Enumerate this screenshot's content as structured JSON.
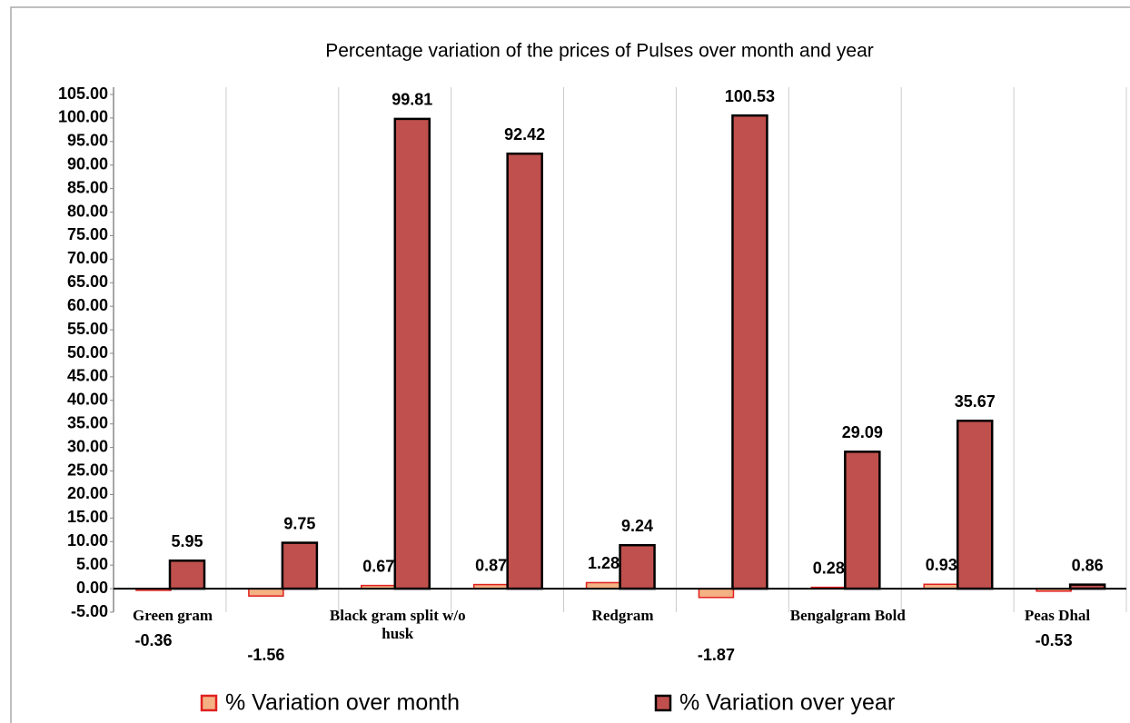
{
  "chart_data": {
    "type": "bar",
    "title": "Percentage variation of the prices of Pulses over month and year",
    "categories": [
      "Green gram",
      null,
      "Black gram split w/o husk",
      null,
      "Redgram",
      null,
      "Bengalgram Bold",
      null,
      "Peas Dhal"
    ],
    "series": [
      {
        "name": "% Variation over month",
        "color": "#f4b183",
        "values": [
          -0.36,
          -1.56,
          0.67,
          0.87,
          1.28,
          -1.87,
          0.28,
          0.93,
          -0.53
        ]
      },
      {
        "name": "% Variation over year",
        "color": "#c0504d",
        "values": [
          5.95,
          9.75,
          99.81,
          92.42,
          9.24,
          100.53,
          29.09,
          35.67,
          0.86
        ]
      }
    ],
    "ylim": [
      -5,
      105
    ],
    "yticks": [
      {
        "value": -5,
        "label": "-5.00"
      },
      {
        "value": 0,
        "label": "0.00"
      },
      {
        "value": 5,
        "label": "5.00"
      },
      {
        "value": 10,
        "label": "10.00"
      },
      {
        "value": 15,
        "label": "15.00"
      },
      {
        "value": 20,
        "label": "20.00"
      },
      {
        "value": 25,
        "label": "25.00"
      },
      {
        "value": 30,
        "label": "30.00"
      },
      {
        "value": 35,
        "label": "35.00"
      },
      {
        "value": 40,
        "label": "40.00"
      },
      {
        "value": 45,
        "label": "45.00"
      },
      {
        "value": 50,
        "label": "50.00"
      },
      {
        "value": 55,
        "label": "55.00"
      },
      {
        "value": 60,
        "label": "60.00"
      },
      {
        "value": 65,
        "label": "65.00"
      },
      {
        "value": 70,
        "label": "70.00"
      },
      {
        "value": 75,
        "label": "75.00"
      },
      {
        "value": 80,
        "label": "80.00"
      },
      {
        "value": 85,
        "label": "85.00"
      },
      {
        "value": 90,
        "label": "90.00"
      },
      {
        "value": 95,
        "label": "95.00"
      },
      {
        "value": 100,
        "label": "100.00"
      },
      {
        "value": 105,
        "label": "105.00"
      }
    ],
    "legend": "bottom"
  }
}
